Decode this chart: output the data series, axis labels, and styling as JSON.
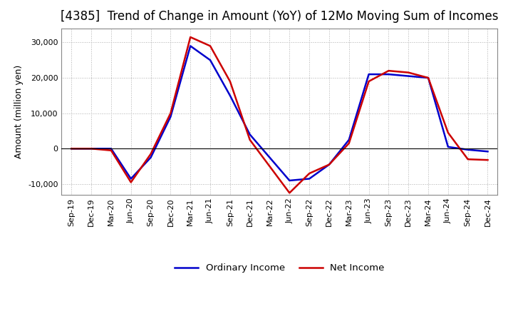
{
  "title": "[4385]  Trend of Change in Amount (YoY) of 12Mo Moving Sum of Incomes",
  "ylabel": "Amount (million yen)",
  "background_color": "#ffffff",
  "grid_color": "#b0b0b0",
  "line_color_ordinary": "#0000cc",
  "line_color_net": "#cc0000",
  "legend_ordinary": "Ordinary Income",
  "legend_net": "Net Income",
  "x_labels": [
    "Sep-19",
    "Dec-19",
    "Mar-20",
    "Jun-20",
    "Sep-20",
    "Dec-20",
    "Mar-21",
    "Jun-21",
    "Sep-21",
    "Dec-21",
    "Mar-22",
    "Jun-22",
    "Sep-22",
    "Dec-22",
    "Mar-23",
    "Jun-23",
    "Sep-23",
    "Dec-23",
    "Mar-24",
    "Jun-24",
    "Sep-24",
    "Dec-24"
  ],
  "ordinary_income": [
    0,
    0,
    0,
    -8500,
    -2500,
    9000,
    29000,
    25000,
    15000,
    4000,
    -2500,
    -9000,
    -8500,
    -4500,
    2500,
    21000,
    21000,
    20500,
    20000,
    500,
    -300,
    -800
  ],
  "net_income": [
    0,
    0,
    -500,
    -9500,
    -1500,
    10000,
    31500,
    29000,
    19000,
    2500,
    -5000,
    -12500,
    -7000,
    -4500,
    1500,
    19000,
    22000,
    21500,
    20000,
    4500,
    -3000,
    -3200
  ],
  "ylim": [
    -13000,
    34000
  ],
  "yticks": [
    -10000,
    0,
    10000,
    20000,
    30000
  ],
  "title_fontsize": 12,
  "axis_fontsize": 9,
  "tick_fontsize": 8,
  "legend_fontsize": 9.5,
  "line_width": 1.8
}
